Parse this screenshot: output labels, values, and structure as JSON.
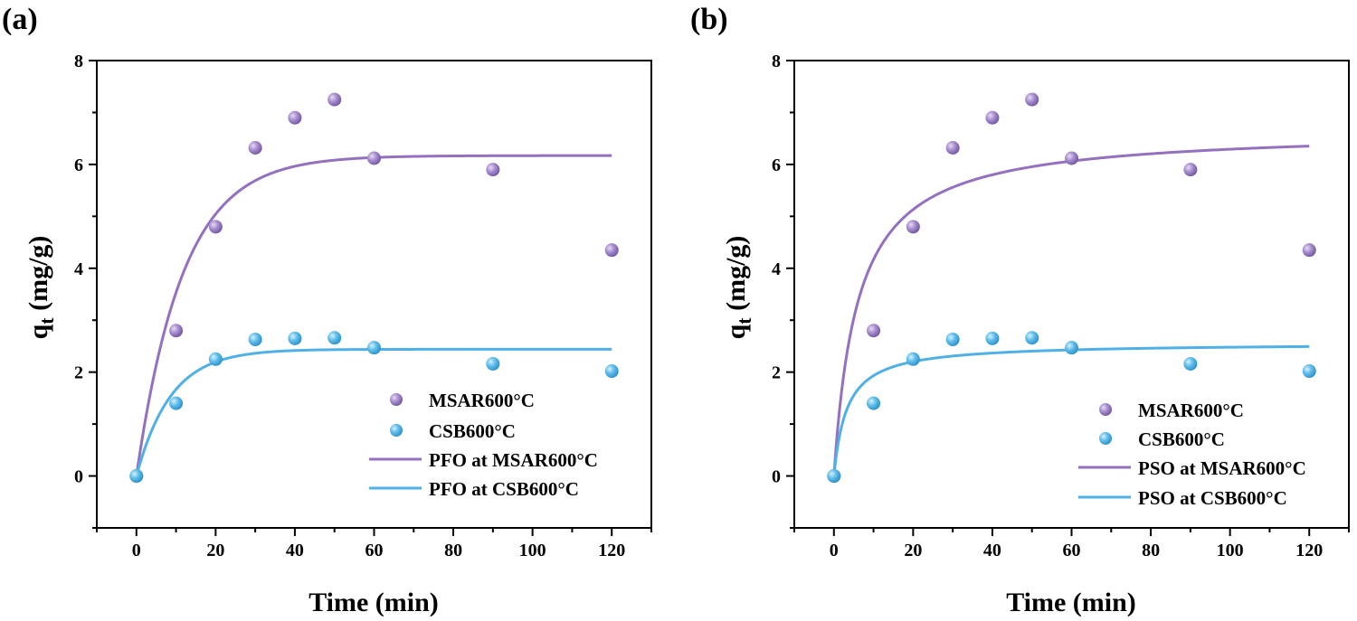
{
  "chart_data": [
    {
      "type": "scatter",
      "panel_label": "(a)",
      "xlabel": "Time (min)",
      "ylabel_main": "q",
      "ylabel_sub": "t",
      "ylabel_unit": " (mg/g)",
      "xlim": [
        -10,
        130
      ],
      "ylim": [
        -1,
        8
      ],
      "xticks": [
        0,
        20,
        40,
        60,
        80,
        100,
        120
      ],
      "yticks": [
        0,
        2,
        4,
        6,
        8
      ],
      "grid": false,
      "legend_position": "bottom-right",
      "series": [
        {
          "name": "MSAR600°C",
          "kind": "scatter",
          "color": "#9b7fc4",
          "x": [
            0,
            10,
            20,
            30,
            40,
            50,
            60,
            90,
            120
          ],
          "y": [
            0,
            2.8,
            4.8,
            6.32,
            6.9,
            7.25,
            6.12,
            5.9,
            4.35
          ]
        },
        {
          "name": "CSB600°C",
          "kind": "scatter",
          "color": "#59b8e6",
          "x": [
            0,
            10,
            20,
            30,
            40,
            50,
            60,
            90,
            120
          ],
          "y": [
            0,
            1.4,
            2.25,
            2.63,
            2.65,
            2.66,
            2.47,
            2.16,
            2.02
          ]
        },
        {
          "name": "PFO at MSAR600°C",
          "kind": "line",
          "color": "#9470c0",
          "model": "PFO",
          "qe": 6.17,
          "k": 0.085
        },
        {
          "name": "PFO at CSB600°C",
          "kind": "line",
          "color": "#4fb0e8",
          "model": "PFO",
          "qe": 2.44,
          "k": 0.115
        }
      ]
    },
    {
      "type": "scatter",
      "panel_label": "(b)",
      "xlabel": "Time (min)",
      "ylabel_main": "q",
      "ylabel_sub": "t",
      "ylabel_unit": " (mg/g)",
      "xlim": [
        -10,
        130
      ],
      "ylim": [
        -1,
        8
      ],
      "xticks": [
        0,
        20,
        40,
        60,
        80,
        100,
        120
      ],
      "yticks": [
        0,
        2,
        4,
        6,
        8
      ],
      "grid": false,
      "legend_position": "bottom-right",
      "series": [
        {
          "name": "MSAR600°C",
          "kind": "scatter",
          "color": "#9b7fc4",
          "x": [
            0,
            10,
            20,
            30,
            40,
            50,
            60,
            90,
            120
          ],
          "y": [
            0,
            2.8,
            4.8,
            6.32,
            6.9,
            7.25,
            6.12,
            5.9,
            4.35
          ]
        },
        {
          "name": "CSB600°C",
          "kind": "scatter",
          "color": "#59b8e6",
          "x": [
            0,
            10,
            20,
            30,
            40,
            50,
            60,
            90,
            120
          ],
          "y": [
            0,
            1.4,
            2.25,
            2.63,
            2.65,
            2.66,
            2.47,
            2.16,
            2.02
          ]
        },
        {
          "name": "PSO at MSAR600°C",
          "kind": "line",
          "color": "#9470c0",
          "model": "PSO",
          "qe": 6.67,
          "k": 0.025
        },
        {
          "name": "PSO at CSB600°C",
          "kind": "line",
          "color": "#4fb0e8",
          "model": "PSO",
          "qe": 2.56,
          "k": 0.12
        }
      ]
    }
  ]
}
